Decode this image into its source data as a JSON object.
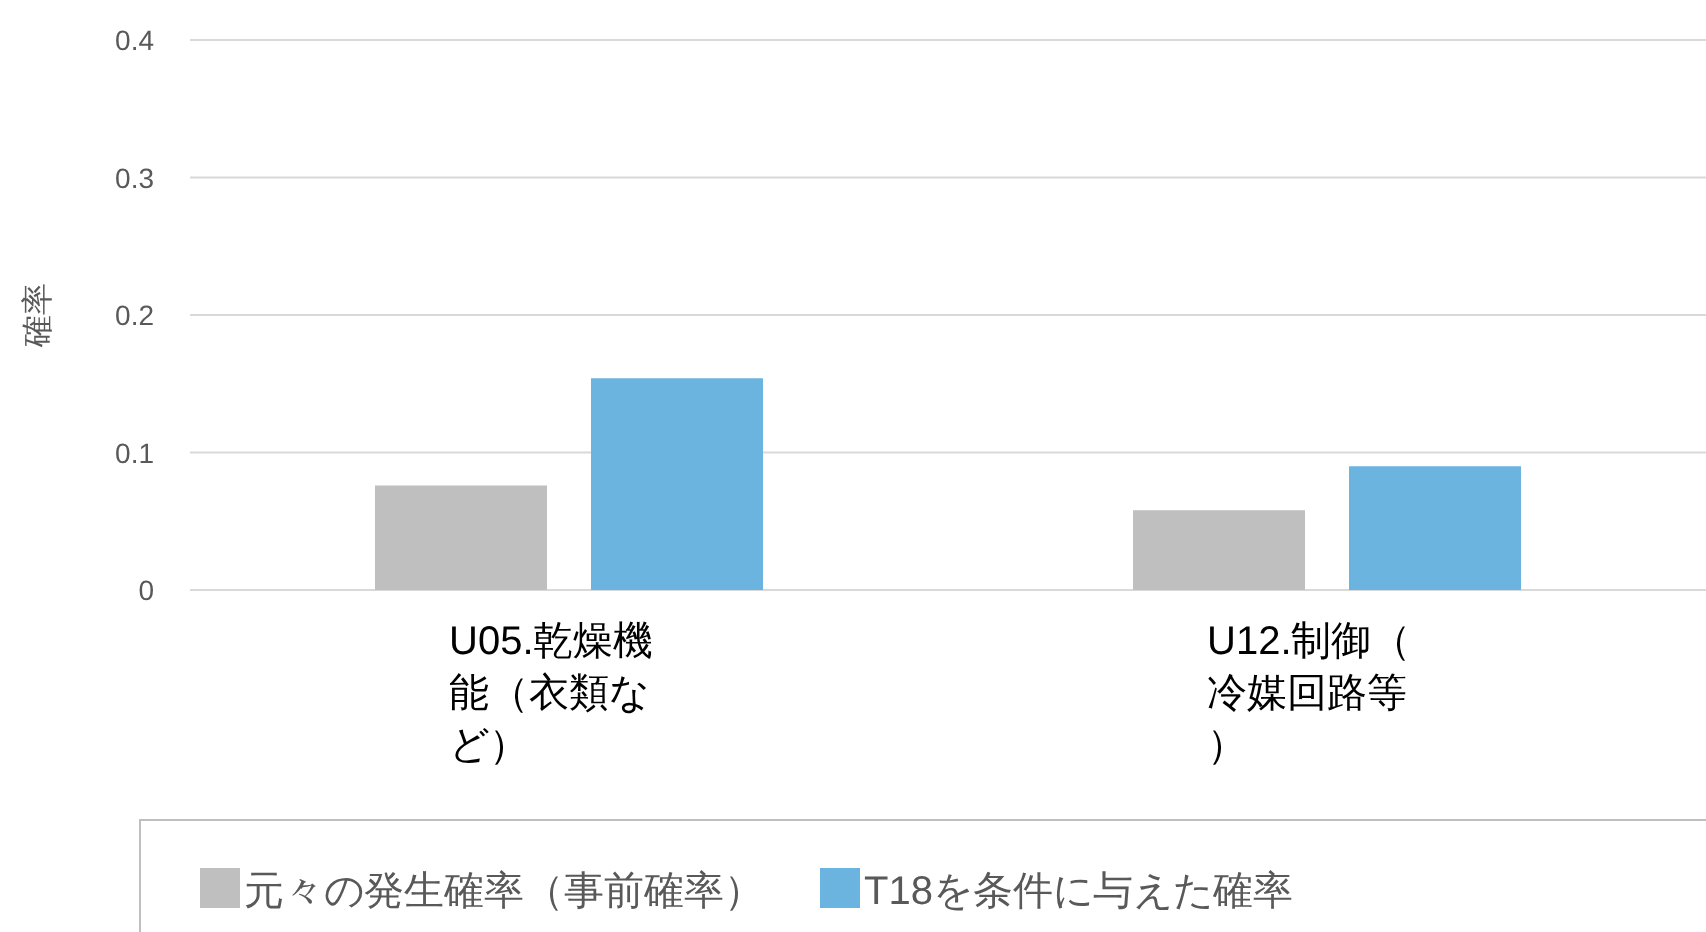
{
  "chart_data": {
    "type": "bar",
    "ylabel": "確率",
    "categories": [
      "U05.乾燥機能（衣類など）",
      "U12.制御（冷媒回路等）"
    ],
    "series": [
      {
        "name": "元々の発生確率（事前確率）",
        "color": "#bfbfbf",
        "values": [
          0.076,
          0.058
        ]
      },
      {
        "name": "T18を条件に与えた確率",
        "color": "#6cb4e0",
        "values": [
          0.154,
          0.09
        ]
      }
    ],
    "ylim": [
      0,
      0.4
    ],
    "yticks": [
      0,
      0.1,
      0.2,
      0.3,
      0.4
    ],
    "grid": "y",
    "legend": "bottom"
  }
}
